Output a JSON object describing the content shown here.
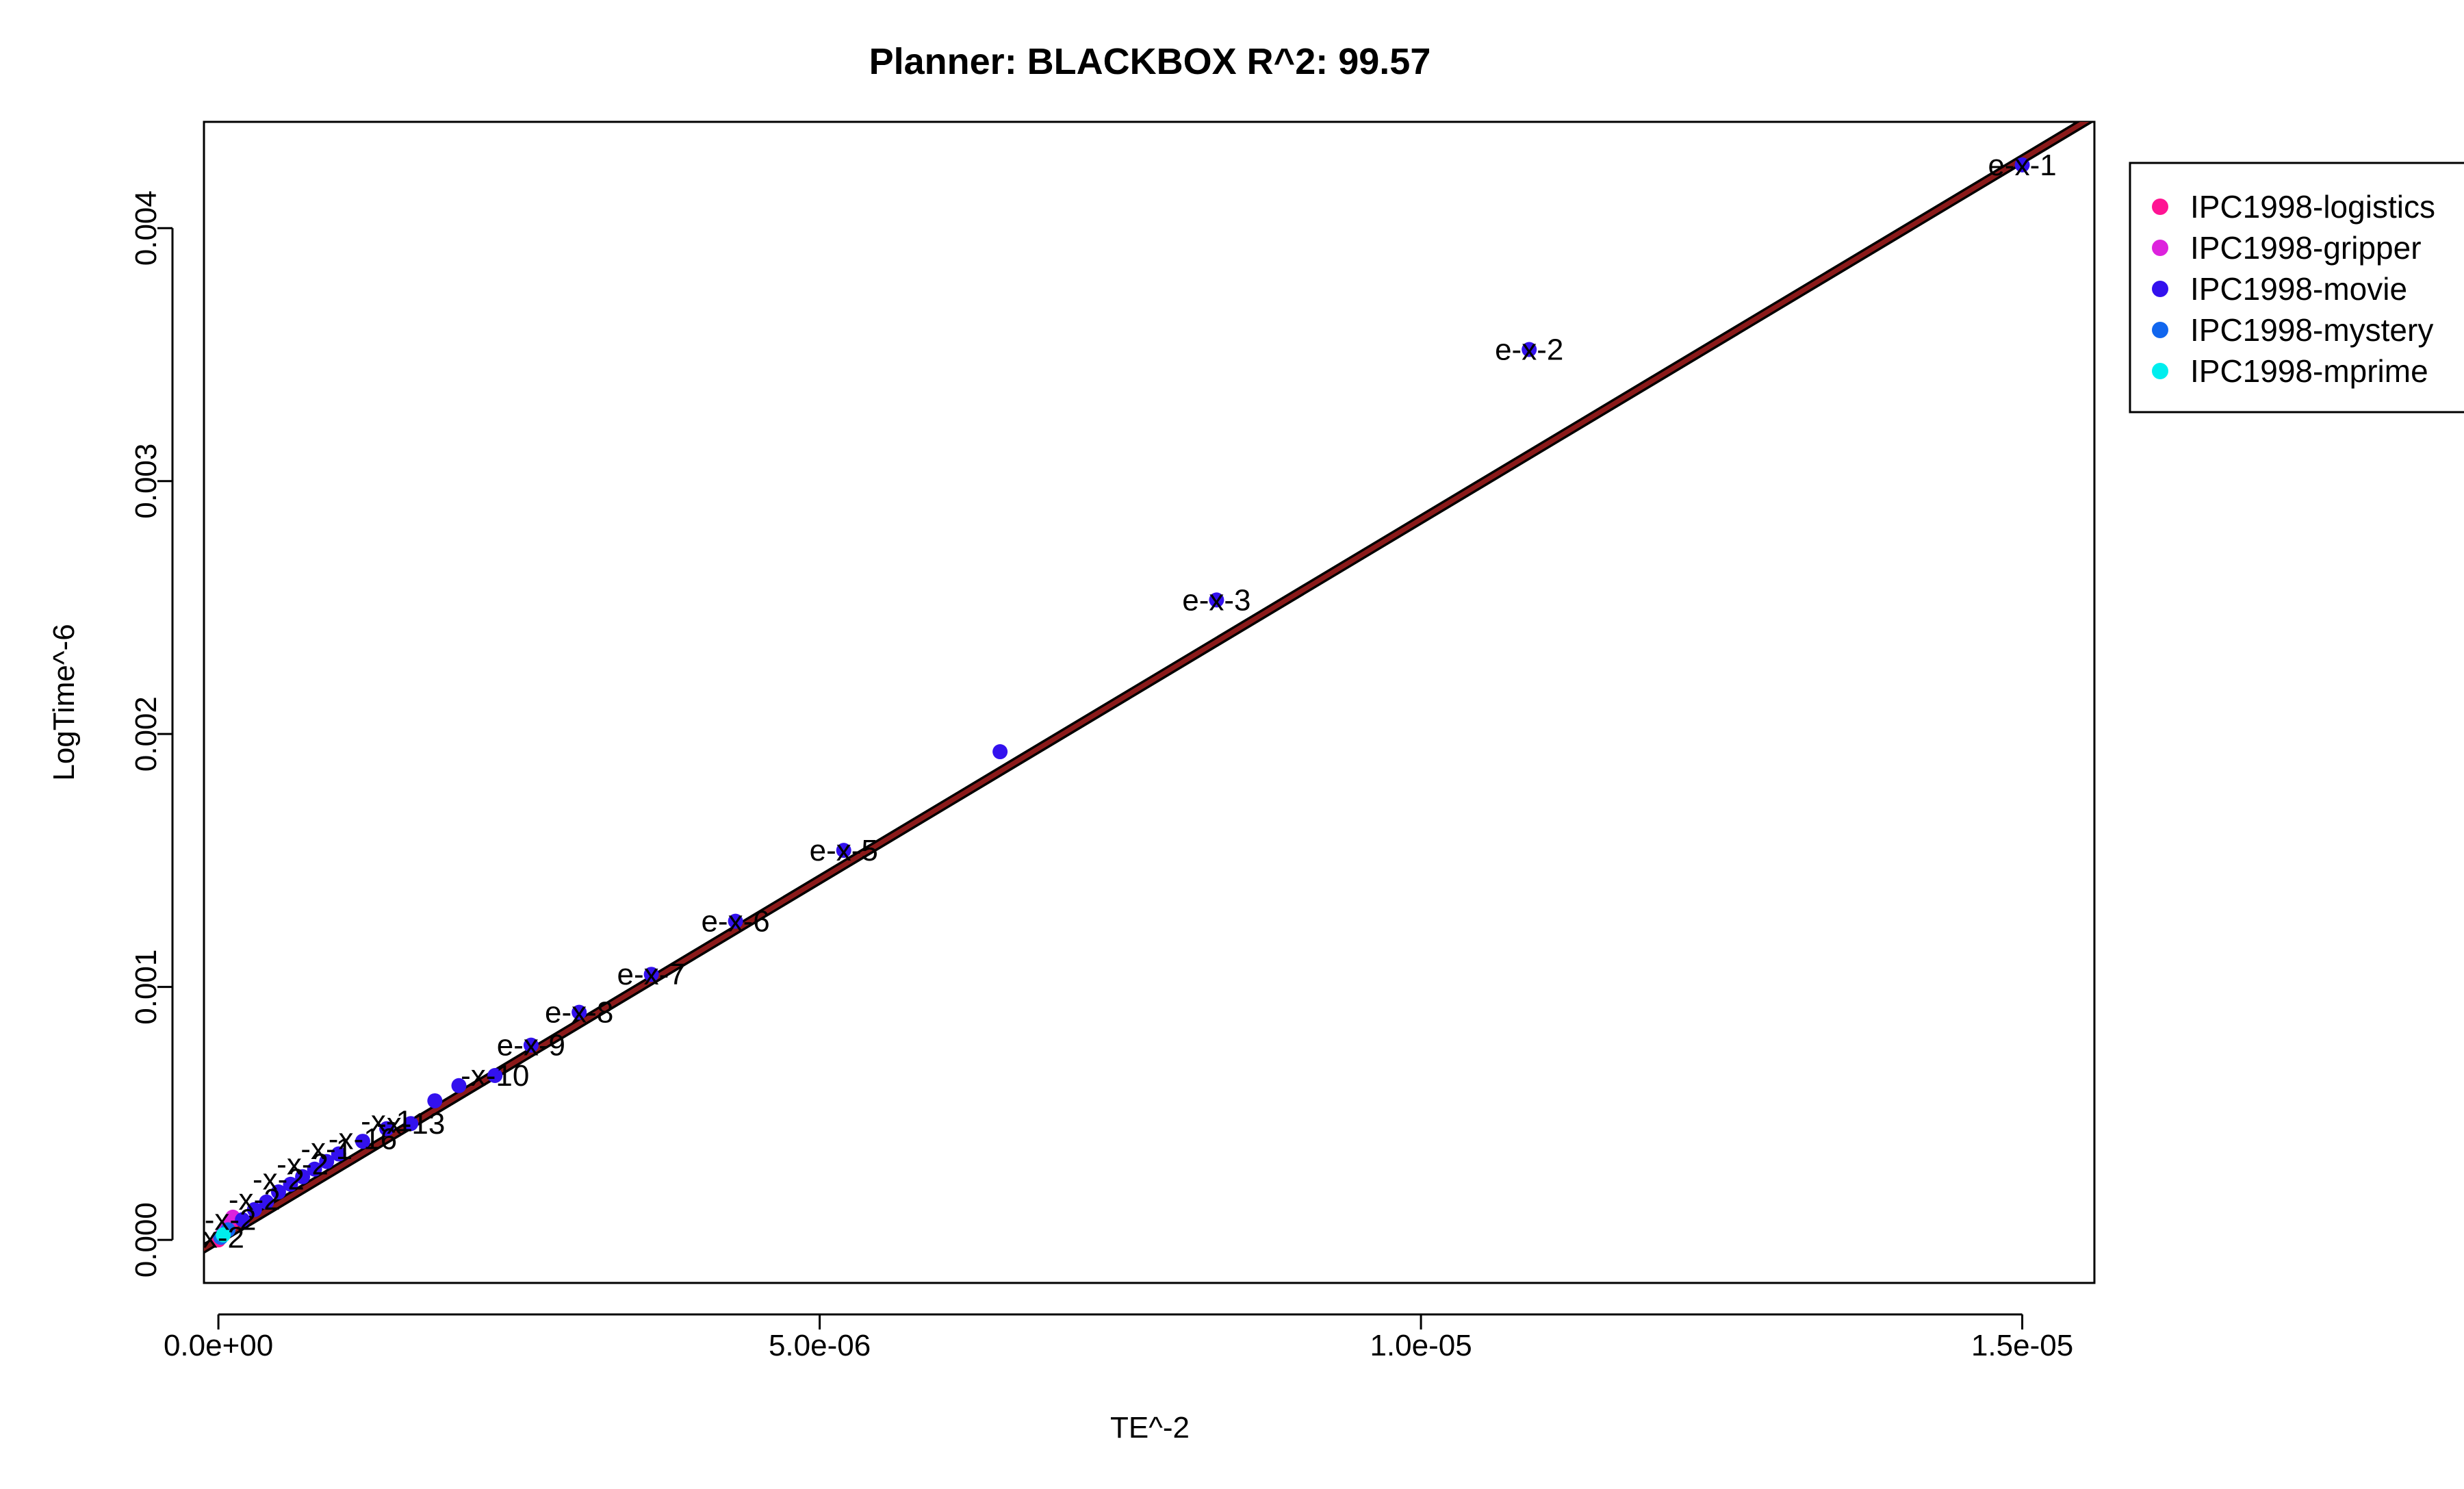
{
  "chart_data": {
    "type": "scatter",
    "title": "Planner: BLACKBOX R^2: 99.57",
    "xlabel": "TE^-2",
    "ylabel": "LogTime^-6",
    "xlim": [
      -1.2e-07,
      1.56e-05
    ],
    "ylim": [
      -0.00017,
      0.00442
    ],
    "x_ticks": [
      0,
      5e-06,
      1e-05,
      1.5e-05
    ],
    "x_tick_labels": [
      "0.0e+00",
      "5.0e-06",
      "1.0e-05",
      "1.5e-05"
    ],
    "y_ticks": [
      0,
      0.001,
      0.002,
      0.003,
      0.004
    ],
    "y_tick_labels": [
      "0.000",
      "0.001",
      "0.002",
      "0.003",
      "0.004"
    ],
    "grid": false,
    "legend_position": "right",
    "fit_line": {
      "points": [
        [
          -6e-07,
          -0.00017
        ],
        [
          1.58e-05,
          0.0045
        ]
      ],
      "color": "#8b1a1a",
      "under_color": "#000000"
    },
    "series": [
      {
        "name": "IPC1998-logistics",
        "color": "#ff1493",
        "points": [
          [
            0.0,
            0.0
          ],
          [
            5e-08,
            3e-05
          ],
          [
            1e-07,
            6e-05
          ]
        ]
      },
      {
        "name": "IPC1998-gripper",
        "color": "#dd22dd",
        "points": [
          [
            3e-08,
            2e-05
          ],
          [
            7e-08,
            5e-05
          ],
          [
            1.2e-07,
            9e-05
          ]
        ]
      },
      {
        "name": "IPC1998-movie",
        "color": "#3311ee",
        "points": [
          [
            1.5e-05,
            0.00425
          ],
          [
            1.09e-05,
            0.00352
          ],
          [
            8.3e-06,
            0.00253
          ],
          [
            6.5e-06,
            0.00193
          ],
          [
            5.2e-06,
            0.00154
          ],
          [
            4.3e-06,
            0.00126
          ],
          [
            3.6e-06,
            0.00105
          ],
          [
            3e-06,
            0.0009
          ],
          [
            2.6e-06,
            0.00077
          ],
          [
            2.3e-06,
            0.00065
          ],
          [
            2e-06,
            0.00061
          ],
          [
            1.8e-06,
            0.00055
          ],
          [
            1.6e-06,
            0.00046
          ],
          [
            1.4e-06,
            0.00044
          ],
          [
            1.2e-06,
            0.00039
          ],
          [
            1e-06,
            0.00034
          ],
          [
            9e-07,
            0.00031
          ],
          [
            8e-07,
            0.00028
          ],
          [
            7e-07,
            0.00025
          ],
          [
            6e-07,
            0.00022
          ],
          [
            5e-07,
            0.00019
          ],
          [
            4e-07,
            0.00015
          ],
          [
            3e-07,
            0.00012
          ],
          [
            2e-07,
            8e-05
          ]
        ]
      },
      {
        "name": "IPC1998-mystery",
        "color": "#1166ee",
        "points": [
          [
            2e-08,
            1e-05
          ],
          [
            8e-08,
            4e-05
          ]
        ]
      },
      {
        "name": "IPC1998-mprime",
        "color": "#00eeee",
        "points": [
          [
            4e-08,
            2e-05
          ]
        ]
      }
    ],
    "point_labels": [
      {
        "x": 1.5e-05,
        "y": 0.00425,
        "text": "e-x-1"
      },
      {
        "x": 1.09e-05,
        "y": 0.00352,
        "text": "e-x-2"
      },
      {
        "x": 8.3e-06,
        "y": 0.00253,
        "text": "e-x-3"
      },
      {
        "x": 5.2e-06,
        "y": 0.00154,
        "text": "e-x-5"
      },
      {
        "x": 4.3e-06,
        "y": 0.00126,
        "text": "e-x-6"
      },
      {
        "x": 3.6e-06,
        "y": 0.00105,
        "text": "e-x-7"
      },
      {
        "x": 3e-06,
        "y": 0.0009,
        "text": "e-x-8"
      },
      {
        "x": 2.6e-06,
        "y": 0.00077,
        "text": "e-x-9"
      },
      {
        "x": 2.3e-06,
        "y": 0.00065,
        "text": "-x-10"
      },
      {
        "x": 1.6e-06,
        "y": 0.00046,
        "text": "-x-13"
      },
      {
        "x": 1.4e-06,
        "y": 0.00047,
        "text": "-x-1"
      },
      {
        "x": 1.2e-06,
        "y": 0.0004,
        "text": "-x-16"
      },
      {
        "x": 9e-07,
        "y": 0.00036,
        "text": "-x-1"
      },
      {
        "x": 7e-07,
        "y": 0.0003,
        "text": "-x-2"
      },
      {
        "x": 5e-07,
        "y": 0.00024,
        "text": "-x-2"
      },
      {
        "x": 3e-07,
        "y": 0.00016,
        "text": "-x-2"
      },
      {
        "x": 1e-07,
        "y": 8e-05,
        "text": "-x-2"
      },
      {
        "x": 0.0,
        "y": 1e-05,
        "text": "-x-2"
      }
    ]
  }
}
